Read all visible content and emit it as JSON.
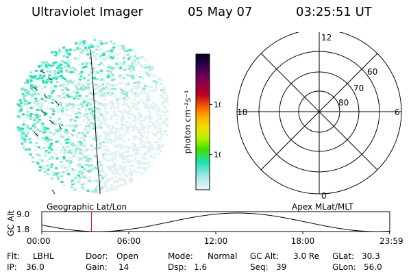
{
  "header": {
    "instrument": "Ultraviolet Imager",
    "date": "05 May 07",
    "time": "03:25:51 UT"
  },
  "image_panel": {
    "label": "Geographic Lat/Lon",
    "colors": {
      "bright": "#22e0b8",
      "mid": "#8fe8d8",
      "dim": "#dff0f0"
    }
  },
  "colorbar": {
    "unit_label": "photon cm⁻²s⁻¹",
    "ticks": [
      "100",
      "10"
    ],
    "tick_values": [
      100,
      10
    ],
    "scale": "log",
    "range": [
      2,
      1000
    ],
    "colors": [
      "#000020",
      "#300050",
      "#7a0055",
      "#b8002a",
      "#e10010",
      "#ff6a00",
      "#ffaa00",
      "#f0e000",
      "#b8f000",
      "#40e000",
      "#22e0b0",
      "#a0e8e8",
      "#ecf4f4"
    ]
  },
  "polar_plot": {
    "label": "Apex MLat/MLT",
    "mlt_labels": {
      "top": "12",
      "left": "18",
      "right": "6",
      "bottom": "0"
    },
    "lat_labels": [
      "60",
      "70",
      "80"
    ]
  },
  "altitude_plot": {
    "ylabel": "GC Alt",
    "yticks": [
      "9.0",
      "1.8"
    ],
    "y_values": [
      9.0,
      1.8
    ],
    "xticks": [
      "00:00",
      "06:00",
      "12:00",
      "18:00",
      "23:59"
    ],
    "current_time_hours": 3.43,
    "marker_color": "#cc0000"
  },
  "footer": {
    "row1": [
      {
        "key": "Flt:",
        "value": "LBHL"
      },
      {
        "key": "Door:",
        "value": "Open"
      },
      {
        "key": "Mode:",
        "value": "Normal"
      },
      {
        "key": "GC Alt:",
        "value": "3.0 Re"
      },
      {
        "key": "GLat:",
        "value": "30.3"
      }
    ],
    "row2": [
      {
        "key": "IP:",
        "value": "36.0"
      },
      {
        "key": "Gain:",
        "value": "14"
      },
      {
        "key": "Dsp:",
        "value": "1.6"
      },
      {
        "key": "Seq:",
        "value": "39"
      },
      {
        "key": "GLon:",
        "value": "56.0"
      }
    ]
  }
}
